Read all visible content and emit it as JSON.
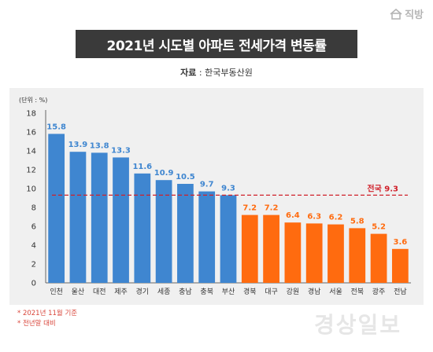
{
  "brand": {
    "name": "직방",
    "icon": "house-icon"
  },
  "title": "2021년 시도별 아파트 전세가격 변동률",
  "source": {
    "label": "자료",
    "value": "한국부동산원"
  },
  "notes": [
    "* 2021년 11월 기준",
    "* 전년말 대비"
  ],
  "watermark": "경상일보",
  "colors": {
    "blue": "#3f86d0",
    "orange": "#ff6b0f",
    "reference": "#d0202a"
  },
  "chart_data": {
    "type": "bar",
    "unit_label": "(단위 : %)",
    "categories": [
      "인천",
      "울산",
      "대전",
      "제주",
      "경기",
      "세종",
      "충남",
      "충북",
      "부산",
      "경북",
      "대구",
      "강원",
      "경남",
      "서울",
      "전북",
      "광주",
      "전남"
    ],
    "values": [
      15.8,
      13.9,
      13.8,
      13.3,
      11.6,
      10.9,
      10.5,
      9.7,
      9.3,
      7.2,
      7.2,
      6.4,
      6.3,
      6.2,
      5.8,
      5.2,
      3.6
    ],
    "value_labels": [
      "15.8",
      "13.9",
      "13.8",
      "13.3",
      "11.6",
      "10.9",
      "10.5",
      "9.7",
      "9.3",
      "7.2",
      "7.2",
      "6.4",
      "6.3",
      "6.2",
      "5.8",
      "5.2",
      "3.6"
    ],
    "bar_colors": [
      "#3f86d0",
      "#3f86d0",
      "#3f86d0",
      "#3f86d0",
      "#3f86d0",
      "#3f86d0",
      "#3f86d0",
      "#3f86d0",
      "#3f86d0",
      "#ff6b0f",
      "#ff6b0f",
      "#ff6b0f",
      "#ff6b0f",
      "#ff6b0f",
      "#ff6b0f",
      "#ff6b0f",
      "#ff6b0f"
    ],
    "yticks": [
      0,
      2,
      4,
      6,
      8,
      10,
      12,
      14,
      16,
      18
    ],
    "ytick_labels": [
      "0",
      "2",
      "4",
      "6",
      "8",
      "10",
      "12",
      "14",
      "16",
      "18"
    ],
    "ylim": [
      0,
      18
    ],
    "reference_line": {
      "value": 9.3,
      "label": "전국 9.3",
      "style": "dashed"
    },
    "grid": false,
    "legend": "none"
  }
}
